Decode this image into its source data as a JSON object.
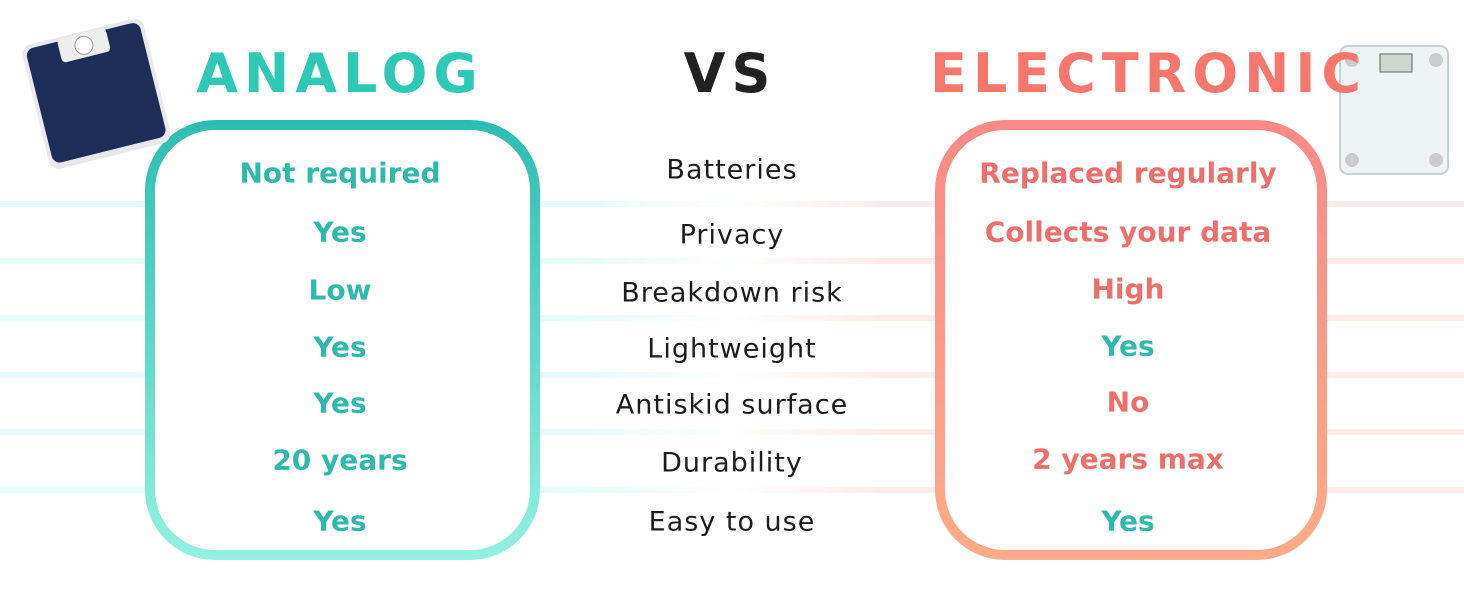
{
  "header": {
    "analog": "ANALOG",
    "vs": "VS",
    "electronic": "ELECTRONIC"
  },
  "rows": [
    {
      "feature": "Batteries",
      "analog": "Not required",
      "electronic": "Replaced regularly"
    },
    {
      "feature": "Privacy",
      "analog": "Yes",
      "electronic": "Collects your data"
    },
    {
      "feature": "Breakdown risk",
      "analog": "Low",
      "electronic": "High"
    },
    {
      "feature": "Lightweight",
      "analog": "Yes",
      "electronic": "Yes"
    },
    {
      "feature": "Antiskid surface",
      "analog": "Yes",
      "electronic": "No"
    },
    {
      "feature": "Durability",
      "analog": "20 years",
      "electronic": "2 years max"
    },
    {
      "feature": "Easy to use",
      "analog": "Yes",
      "electronic": "Yes"
    }
  ]
}
